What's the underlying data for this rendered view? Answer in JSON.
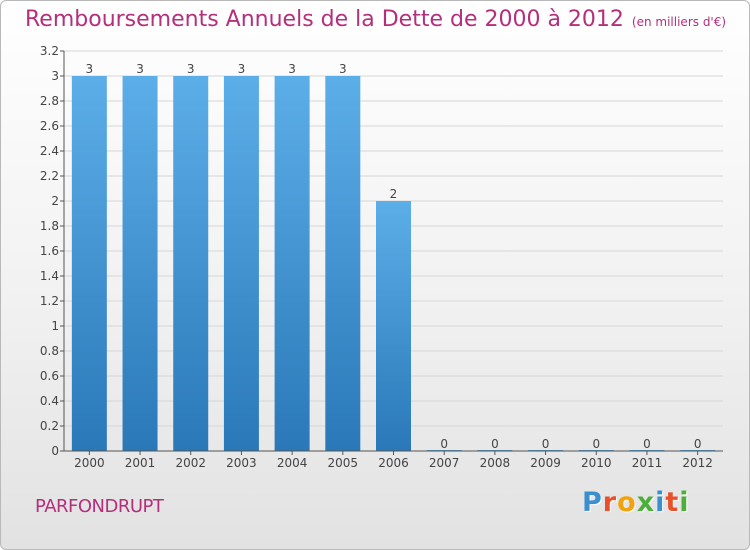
{
  "header": {
    "title": "Remboursements Annuels de la Dette de 2000 à 2012",
    "subtitle": "(en milliers d'€)"
  },
  "footer": {
    "commune": "PARFONDRUPT",
    "logo": {
      "letters": [
        "P",
        "r",
        "o",
        "x",
        "i",
        "t",
        "i"
      ],
      "colors": [
        "#3a8fd1",
        "#e8512a",
        "#f2a20d",
        "#4caf3a",
        "#3a8fd1",
        "#e8512a",
        "#4caf3a"
      ]
    }
  },
  "chart_data": {
    "type": "bar",
    "categories": [
      "2000",
      "2001",
      "2002",
      "2003",
      "2004",
      "2005",
      "2006",
      "2007",
      "2008",
      "2009",
      "2010",
      "2011",
      "2012"
    ],
    "values": [
      3,
      3,
      3,
      3,
      3,
      3,
      2,
      0,
      0,
      0,
      0,
      0,
      0
    ],
    "value_labels": [
      "3",
      "3",
      "3",
      "3",
      "3",
      "3",
      "2",
      "0",
      "0",
      "0",
      "0",
      "0",
      "0"
    ],
    "ylim": [
      0,
      3.2
    ],
    "yticks": [
      {
        "value": 0,
        "label": "0"
      },
      {
        "value": 0.2,
        "label": "0.2"
      },
      {
        "value": 0.4,
        "label": "0.4"
      },
      {
        "value": 0.6,
        "label": "0.6"
      },
      {
        "value": 0.8,
        "label": "0.8"
      },
      {
        "value": 1,
        "label": "1"
      },
      {
        "value": 1.2,
        "label": "1.2"
      },
      {
        "value": 1.4,
        "label": "1.4"
      },
      {
        "value": 1.6,
        "label": "1.6"
      },
      {
        "value": 1.8,
        "label": "1.8"
      },
      {
        "value": 2,
        "label": "2"
      },
      {
        "value": 2.2,
        "label": "2.2"
      },
      {
        "value": 2.4,
        "label": "2.4"
      },
      {
        "value": 2.6,
        "label": "2.6"
      },
      {
        "value": 2.8,
        "label": "2.8"
      },
      {
        "value": 3,
        "label": "3"
      },
      {
        "value": 3.2,
        "label": "3.2"
      }
    ],
    "grid": true,
    "colors": {
      "bar_top": "#5caee8",
      "bar_bottom": "#2a78b8",
      "grid": "#d6d6d6",
      "axis": "#555555",
      "text": "#444444"
    }
  }
}
